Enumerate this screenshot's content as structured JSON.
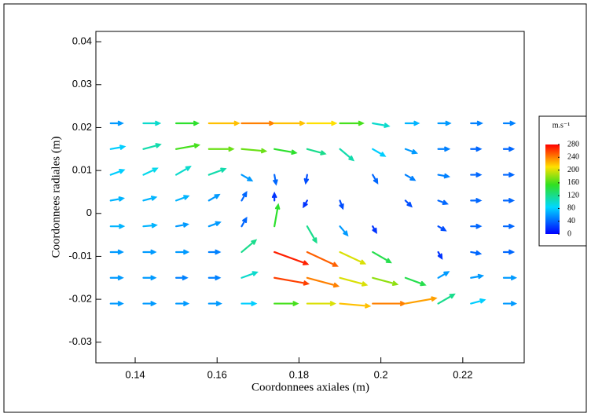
{
  "chart_data": {
    "type": "quiver",
    "xlabel": "Coordonnees axiales (m)",
    "ylabel": "Coordonnees radiales (m)",
    "xlim": [
      0.1304,
      0.235
    ],
    "ylim": [
      -0.0348,
      0.0424
    ],
    "xticks": [
      0.14,
      0.16,
      0.18,
      0.2,
      0.22
    ],
    "yticks": [
      0.04,
      0.03,
      0.02,
      0.01,
      0,
      -0.01,
      -0.02,
      -0.03
    ],
    "grid_x": [
      0.134,
      0.142,
      0.15,
      0.158,
      0.166,
      0.174,
      0.182,
      0.19,
      0.198,
      0.206,
      0.214,
      0.222,
      0.23
    ],
    "grid_y": [
      0.021,
      0.015,
      0.009,
      0.003,
      -0.003,
      -0.009,
      -0.015,
      -0.021
    ],
    "speed": [
      [
        60,
        100,
        150,
        220,
        240,
        220,
        210,
        160,
        100,
        70,
        60,
        50,
        50
      ],
      [
        80,
        110,
        160,
        170,
        170,
        150,
        120,
        110,
        80,
        60,
        50,
        40,
        40
      ],
      [
        80,
        90,
        100,
        110,
        60,
        40,
        30,
        null,
        40,
        50,
        50,
        40,
        40
      ],
      [
        70,
        70,
        70,
        60,
        40,
        20,
        20,
        30,
        null,
        30,
        40,
        40,
        40
      ],
      [
        70,
        70,
        60,
        60,
        40,
        150,
        120,
        60,
        20,
        null,
        30,
        40,
        40
      ],
      [
        60,
        60,
        60,
        50,
        120,
        270,
        250,
        200,
        140,
        null,
        20,
        40,
        40
      ],
      [
        60,
        60,
        50,
        50,
        100,
        260,
        240,
        200,
        180,
        140,
        60,
        60,
        60
      ],
      [
        60,
        60,
        60,
        60,
        80,
        160,
        200,
        220,
        240,
        230,
        120,
        80,
        60
      ]
    ],
    "angle": [
      [
        0,
        0,
        0,
        0,
        0,
        0,
        0,
        0,
        -10,
        0,
        0,
        0,
        0
      ],
      [
        10,
        15,
        10,
        0,
        -5,
        -10,
        -15,
        -40,
        -30,
        -20,
        0,
        0,
        0
      ],
      [
        20,
        25,
        30,
        20,
        -30,
        -80,
        -100,
        null,
        -60,
        -30,
        -10,
        0,
        0
      ],
      [
        10,
        15,
        20,
        30,
        60,
        90,
        -120,
        -70,
        null,
        -45,
        -20,
        0,
        0
      ],
      [
        0,
        5,
        10,
        20,
        60,
        80,
        -60,
        -50,
        -60,
        null,
        -30,
        0,
        0
      ],
      [
        0,
        0,
        0,
        0,
        40,
        -20,
        -25,
        -25,
        -30,
        null,
        -60,
        -10,
        0
      ],
      [
        0,
        0,
        0,
        0,
        20,
        -10,
        -15,
        -15,
        -15,
        -20,
        30,
        10,
        0
      ],
      [
        0,
        0,
        0,
        0,
        0,
        0,
        0,
        -5,
        0,
        10,
        30,
        15,
        0
      ]
    ],
    "colorbar": {
      "title": "m.s⁻¹",
      "lim": [
        0,
        280
      ],
      "ticks": [
        280,
        240,
        200,
        160,
        120,
        80,
        40,
        0
      ]
    }
  }
}
